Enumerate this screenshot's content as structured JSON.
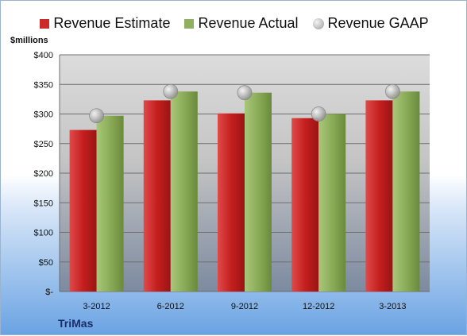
{
  "chart_data": {
    "type": "bar",
    "categories": [
      "3-2012",
      "6-2012",
      "9-2012",
      "12-2012",
      "3-2013"
    ],
    "series": [
      {
        "name": "Revenue Estimate",
        "values": [
          273,
          323,
          301,
          293,
          323
        ],
        "color": "#cc2a2a",
        "kind": "bar"
      },
      {
        "name": "Revenue Actual",
        "values": [
          297,
          338,
          336,
          300,
          338
        ],
        "color": "#8fb060",
        "kind": "bar"
      },
      {
        "name": "Revenue GAAP",
        "values": [
          297,
          338,
          336,
          300,
          338
        ],
        "color": "#b0b0b0",
        "kind": "marker"
      }
    ],
    "ylabel": "$millions",
    "ylim": [
      0,
      400
    ],
    "yticks": [
      0,
      50,
      100,
      150,
      200,
      250,
      300,
      350,
      400
    ],
    "ytick_labels": [
      "$-",
      "$50",
      "$100",
      "$150",
      "$200",
      "$250",
      "$300",
      "$350",
      "$400"
    ],
    "grid": true,
    "legend": "top"
  },
  "company": "TriMas"
}
